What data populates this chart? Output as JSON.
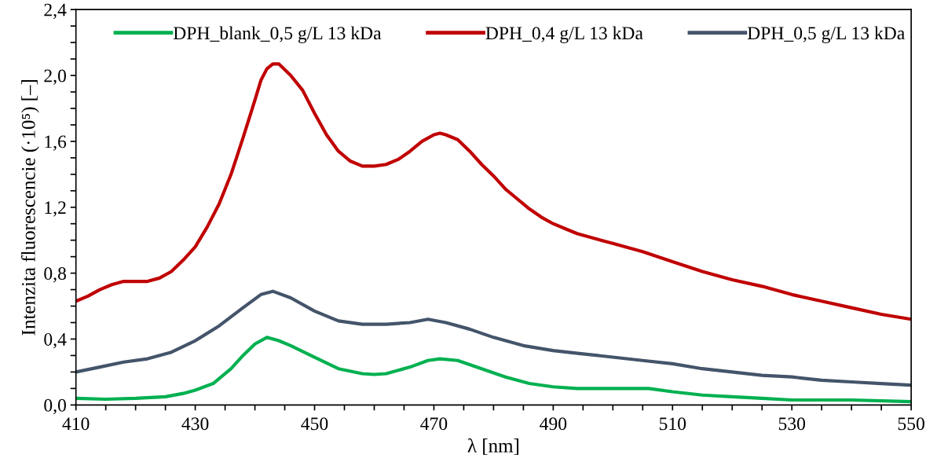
{
  "chart_data": {
    "type": "line",
    "xlabel": "λ [nm]",
    "ylabel": "Intenzita fluorescencie (·10⁵) [–]",
    "xlim": [
      410,
      550
    ],
    "ylim": [
      0,
      2.4
    ],
    "xticks": [
      410,
      {
        "value": 415,
        "label": null
      },
      {
        "value": 420,
        "label": null
      },
      {
        "value": 425,
        "label": null
      },
      430,
      {
        "value": 435,
        "label": null
      },
      {
        "value": 440,
        "label": null
      },
      {
        "value": 445,
        "label": null
      },
      450,
      {
        "value": 455,
        "label": null
      },
      {
        "value": 460,
        "label": null
      },
      {
        "value": 465,
        "label": null
      },
      470,
      {
        "value": 475,
        "label": null
      },
      {
        "value": 480,
        "label": null
      },
      {
        "value": 485,
        "label": null
      },
      490,
      {
        "value": 495,
        "label": null
      },
      {
        "value": 500,
        "label": null
      },
      {
        "value": 505,
        "label": null
      },
      510,
      {
        "value": 515,
        "label": null
      },
      {
        "value": 520,
        "label": null
      },
      {
        "value": 525,
        "label": null
      },
      530,
      {
        "value": 535,
        "label": null
      },
      {
        "value": 540,
        "label": null
      },
      {
        "value": 545,
        "label": null
      },
      550
    ],
    "yticks": [
      {
        "value": 0,
        "label": "0,0"
      },
      {
        "value": 0.1,
        "label": null
      },
      {
        "value": 0.2,
        "label": null
      },
      {
        "value": 0.3,
        "label": null
      },
      {
        "value": 0.4,
        "label": "0,4"
      },
      {
        "value": 0.5,
        "label": null
      },
      {
        "value": 0.6,
        "label": null
      },
      {
        "value": 0.7,
        "label": null
      },
      {
        "value": 0.8,
        "label": "0,8"
      },
      {
        "value": 0.9,
        "label": null
      },
      {
        "value": 1.0,
        "label": null
      },
      {
        "value": 1.1,
        "label": null
      },
      {
        "value": 1.2,
        "label": "1,2"
      },
      {
        "value": 1.3,
        "label": null
      },
      {
        "value": 1.4,
        "label": null
      },
      {
        "value": 1.5,
        "label": null
      },
      {
        "value": 1.6,
        "label": "1,6"
      },
      {
        "value": 1.7,
        "label": null
      },
      {
        "value": 1.8,
        "label": null
      },
      {
        "value": 1.9,
        "label": null
      },
      {
        "value": 2.0,
        "label": "2,0"
      },
      {
        "value": 2.1,
        "label": null
      },
      {
        "value": 2.2,
        "label": null
      },
      {
        "value": 2.3,
        "label": null
      },
      {
        "value": 2.4,
        "label": "2,4"
      }
    ],
    "grid": false,
    "legend": "top",
    "marker": "none",
    "line_style": "solid",
    "series": [
      {
        "name": "DPH_blank_0,5 g/L 13 kDa",
        "color": "#00b050",
        "x": [
          410,
          415,
          420,
          425,
          428,
          430,
          433,
          436,
          438,
          440,
          442,
          444,
          446,
          450,
          454,
          458,
          460,
          462,
          466,
          469,
          471,
          474,
          478,
          482,
          486,
          490,
          494,
          498,
          502,
          506,
          510,
          515,
          520,
          525,
          530,
          540,
          550
        ],
        "values": [
          0.04,
          0.035,
          0.04,
          0.05,
          0.07,
          0.09,
          0.13,
          0.22,
          0.3,
          0.37,
          0.41,
          0.39,
          0.36,
          0.29,
          0.22,
          0.19,
          0.185,
          0.19,
          0.23,
          0.27,
          0.28,
          0.27,
          0.22,
          0.17,
          0.13,
          0.11,
          0.1,
          0.1,
          0.1,
          0.1,
          0.08,
          0.06,
          0.05,
          0.04,
          0.03,
          0.03,
          0.02
        ]
      },
      {
        "name": "DPH_0,4 g/L 13 kDa",
        "color": "#c00000",
        "x": [
          410,
          412,
          414,
          416,
          418,
          420,
          422,
          424,
          426,
          428,
          430,
          432,
          434,
          436,
          438,
          440,
          441,
          442,
          443,
          444,
          446,
          448,
          450,
          452,
          454,
          456,
          458,
          460,
          462,
          464,
          466,
          468,
          470,
          471,
          472,
          474,
          476,
          478,
          480,
          482,
          484,
          486,
          488,
          490,
          492,
          494,
          496,
          498,
          500,
          505,
          510,
          515,
          520,
          525,
          530,
          535,
          540,
          545,
          550
        ],
        "values": [
          0.63,
          0.66,
          0.7,
          0.73,
          0.75,
          0.75,
          0.75,
          0.77,
          0.81,
          0.88,
          0.96,
          1.08,
          1.22,
          1.4,
          1.62,
          1.85,
          1.97,
          2.04,
          2.07,
          2.07,
          2.0,
          1.91,
          1.77,
          1.64,
          1.54,
          1.48,
          1.45,
          1.45,
          1.46,
          1.49,
          1.54,
          1.6,
          1.64,
          1.65,
          1.64,
          1.61,
          1.54,
          1.46,
          1.39,
          1.31,
          1.25,
          1.19,
          1.14,
          1.1,
          1.07,
          1.04,
          1.02,
          1.0,
          0.98,
          0.93,
          0.87,
          0.81,
          0.76,
          0.72,
          0.67,
          0.63,
          0.59,
          0.55,
          0.52
        ]
      },
      {
        "name": "DPH_0,5 g/L 13 kDa",
        "color": "#44546a",
        "x": [
          410,
          414,
          418,
          422,
          426,
          430,
          434,
          438,
          441,
          443,
          446,
          450,
          454,
          458,
          462,
          466,
          469,
          472,
          476,
          480,
          485,
          490,
          495,
          500,
          505,
          510,
          515,
          520,
          525,
          530,
          535,
          540,
          545,
          550
        ],
        "values": [
          0.2,
          0.23,
          0.26,
          0.28,
          0.32,
          0.39,
          0.48,
          0.59,
          0.67,
          0.69,
          0.65,
          0.57,
          0.51,
          0.49,
          0.49,
          0.5,
          0.52,
          0.5,
          0.46,
          0.41,
          0.36,
          0.33,
          0.31,
          0.29,
          0.27,
          0.25,
          0.22,
          0.2,
          0.18,
          0.17,
          0.15,
          0.14,
          0.13,
          0.12
        ]
      }
    ]
  }
}
